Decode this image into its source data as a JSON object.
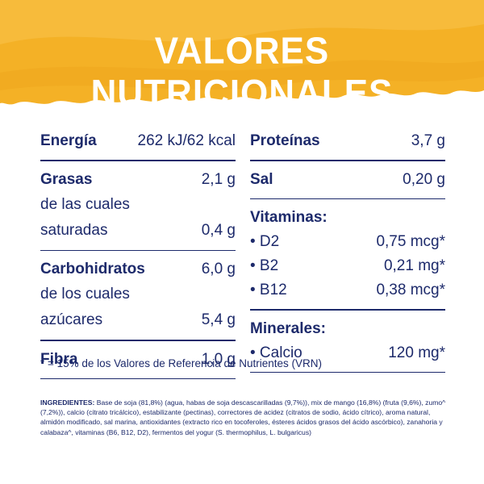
{
  "title": "VALORES NUTRICIONALES",
  "colors": {
    "banner": "#f4b126",
    "banner_light": "#f8c24a",
    "text": "#1d2a6b",
    "background": "#ffffff"
  },
  "left": {
    "energia": {
      "label": "Energía",
      "value": "262 kJ/62 kcal"
    },
    "grasas": {
      "label": "Grasas",
      "value": "2,1 g",
      "sub1": "de las cuales",
      "sub2": "saturadas",
      "sub_value": "0,4 g"
    },
    "carbohidratos": {
      "label": "Carbohidratos",
      "value": "6,0 g",
      "sub1": "de los cuales",
      "sub2": "azúcares",
      "sub_value": "5,4 g"
    },
    "fibra": {
      "label": "Fibra",
      "value": "1,0 g"
    }
  },
  "right": {
    "proteinas": {
      "label": "Proteínas",
      "value": "3,7 g"
    },
    "sal": {
      "label": "Sal",
      "value": "0,20 g"
    },
    "vitaminas": {
      "label": "Vitaminas:",
      "items": [
        {
          "name": "• D2",
          "value": "0,75 mcg*"
        },
        {
          "name": "• B2",
          "value": "0,21 mg*"
        },
        {
          "name": "• B12",
          "value": "0,38 mcg*"
        }
      ]
    },
    "minerales": {
      "label": "Minerales:",
      "items": [
        {
          "name": "• Calcio",
          "value": "120 mg*"
        }
      ]
    }
  },
  "footnote": "* = 15% de los Valores de Referencia de Nutrientes (VRN)",
  "ingredients": {
    "label": "INGREDIENTES:",
    "text": "Base de soja (81,8%) (agua, habas de soja descascarilladas (9,7%)), mix de mango (16,8%) (fruta (9,6%), zumo^ (7,2%)), calcio (citrato tricálcico), estabilizante (pectinas), correctores de acidez (citratos de sodio, ácido cítrico), aroma natural, almidón modificado, sal marina, antioxidantes (extracto rico en tocoferoles, ésteres ácidos grasos del ácido ascórbico), zanahoria y calabaza^, vitaminas (B6, B12, D2), fermentos del yogur (S. thermophilus, L. bulgaricus)"
  }
}
